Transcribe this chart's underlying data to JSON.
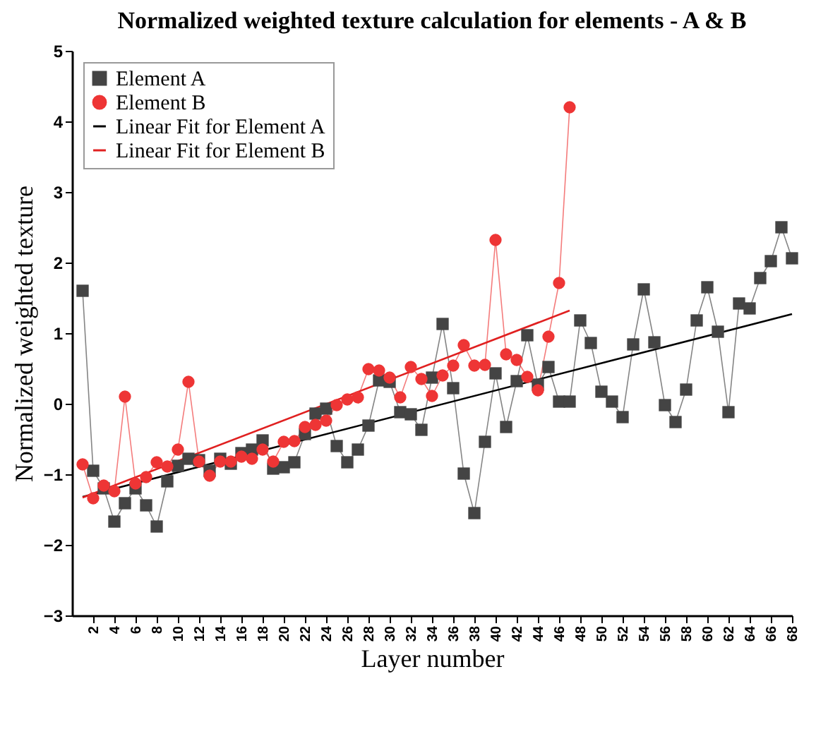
{
  "chart_data": {
    "type": "line",
    "title": "Normalized weighted texture calculation for elements - A & B",
    "xlabel": "Layer number",
    "ylabel": "Normalized weighted texture",
    "xlim": [
      0,
      68
    ],
    "xticks": [
      2,
      4,
      6,
      8,
      10,
      12,
      14,
      16,
      18,
      20,
      22,
      24,
      26,
      28,
      30,
      32,
      34,
      36,
      38,
      40,
      42,
      44,
      46,
      48,
      50,
      52,
      54,
      56,
      58,
      60,
      62,
      64,
      66,
      68
    ],
    "ylim": [
      -3,
      5
    ],
    "yticks": [
      -3,
      -2,
      -1,
      0,
      1,
      2,
      3,
      4,
      5
    ],
    "legend": "top left",
    "series": [
      {
        "name": "Element A",
        "color": "#444444",
        "marker": "square",
        "x": [
          1,
          2,
          3,
          4,
          5,
          6,
          7,
          8,
          9,
          10,
          11,
          12,
          13,
          14,
          15,
          16,
          17,
          18,
          19,
          20,
          21,
          22,
          23,
          24,
          25,
          26,
          27,
          28,
          29,
          30,
          31,
          32,
          33,
          34,
          35,
          36,
          37,
          38,
          39,
          40,
          41,
          42,
          43,
          44,
          45,
          46,
          47,
          48,
          49,
          50,
          51,
          52,
          53,
          54,
          55,
          56,
          57,
          58,
          59,
          60,
          61,
          62,
          63,
          64,
          65,
          66,
          67,
          68
        ],
        "values": [
          1.6,
          -0.95,
          -1.2,
          -1.67,
          -1.41,
          -1.2,
          -1.44,
          -1.74,
          -1.1,
          -0.88,
          -0.78,
          -0.8,
          -0.95,
          -0.78,
          -0.85,
          -0.7,
          -0.65,
          -0.52,
          -0.92,
          -0.9,
          -0.83,
          -0.43,
          -0.14,
          -0.07,
          -0.6,
          -0.83,
          -0.65,
          -0.31,
          0.33,
          0.31,
          -0.12,
          -0.15,
          -0.37,
          0.37,
          1.13,
          0.22,
          -0.99,
          -1.55,
          -0.54,
          0.43,
          -0.33,
          0.32,
          0.97,
          0.27,
          0.52,
          0.03,
          0.03,
          1.18,
          0.86,
          0.17,
          0.03,
          -0.19,
          0.84,
          1.62,
          0.87,
          -0.02,
          -0.26,
          0.2,
          1.18,
          1.65,
          1.02,
          -0.12,
          1.42,
          1.35,
          1.78,
          2.02,
          2.5,
          2.06
        ]
      },
      {
        "name": "Element B",
        "color": "#ee3535",
        "marker": "circle",
        "x": [
          1,
          2,
          3,
          4,
          5,
          6,
          7,
          8,
          9,
          10,
          11,
          12,
          13,
          14,
          15,
          16,
          17,
          18,
          19,
          20,
          21,
          22,
          23,
          24,
          25,
          26,
          27,
          28,
          29,
          30,
          31,
          32,
          33,
          34,
          35,
          36,
          37,
          38,
          39,
          40,
          41,
          42,
          43,
          44,
          45,
          46,
          47
        ],
        "values": [
          -0.86,
          -1.34,
          -1.16,
          -1.24,
          0.1,
          -1.13,
          -1.04,
          -0.83,
          -0.89,
          -0.65,
          0.31,
          -0.82,
          -1.02,
          -0.82,
          -0.82,
          -0.75,
          -0.78,
          -0.65,
          -0.82,
          -0.54,
          -0.53,
          -0.33,
          -0.3,
          -0.24,
          -0.02,
          0.06,
          0.09,
          0.49,
          0.47,
          0.37,
          0.09,
          0.52,
          0.35,
          0.11,
          0.4,
          0.54,
          0.83,
          0.54,
          0.55,
          2.32,
          0.7,
          0.62,
          0.38,
          0.19,
          0.95,
          1.71,
          4.2
        ]
      },
      {
        "name": "Linear Fit for Element A",
        "color": "#000000",
        "marker": "none",
        "x": [
          1,
          68
        ],
        "values": [
          -1.32,
          1.27
        ]
      },
      {
        "name": "Linear Fit for Element B",
        "color": "#e02020",
        "marker": "none",
        "x": [
          1,
          47
        ],
        "values": [
          -1.33,
          1.32
        ]
      }
    ]
  }
}
